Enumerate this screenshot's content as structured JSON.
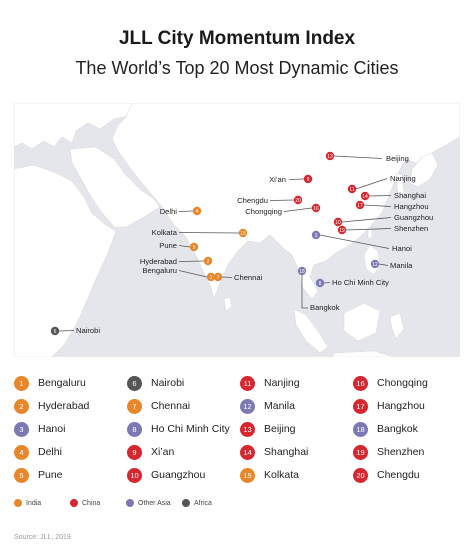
{
  "title": "JLL City Momentum Index",
  "subtitle": "The World’s Top 20 Most Dynamic Cities",
  "source": "Source: JLL, 2019",
  "colors": {
    "India": "#e8862a",
    "China": "#d6262f",
    "Other Asia": "#7b78b2",
    "Africa": "#555555"
  },
  "categories": [
    {
      "label": "India",
      "key": "India"
    },
    {
      "label": "China",
      "key": "China"
    },
    {
      "label": "Other Asia",
      "key": "Other Asia"
    },
    {
      "label": "Africa",
      "key": "Africa"
    }
  ],
  "cities": [
    {
      "rank": 1,
      "name": "Bengaluru",
      "region": "India"
    },
    {
      "rank": 2,
      "name": "Hyderabad",
      "region": "India"
    },
    {
      "rank": 3,
      "name": "Hanoi",
      "region": "Other Asia"
    },
    {
      "rank": 4,
      "name": "Delhi",
      "region": "India"
    },
    {
      "rank": 5,
      "name": "Pune",
      "region": "India"
    },
    {
      "rank": 6,
      "name": "Nairobi",
      "region": "Africa"
    },
    {
      "rank": 7,
      "name": "Chennai",
      "region": "India"
    },
    {
      "rank": 8,
      "name": "Ho Chi Minh City",
      "region": "Other Asia"
    },
    {
      "rank": 9,
      "name": "Xi’an",
      "region": "China"
    },
    {
      "rank": 10,
      "name": "Guangzhou",
      "region": "China"
    },
    {
      "rank": 11,
      "name": "Nanjing",
      "region": "China"
    },
    {
      "rank": 12,
      "name": "Manila",
      "region": "Other Asia"
    },
    {
      "rank": 13,
      "name": "Beijing",
      "region": "China"
    },
    {
      "rank": 14,
      "name": "Shanghai",
      "region": "China"
    },
    {
      "rank": 15,
      "name": "Kolkata",
      "region": "India"
    },
    {
      "rank": 16,
      "name": "Chongqing",
      "region": "China"
    },
    {
      "rank": 17,
      "name": "Hangzhou",
      "region": "China"
    },
    {
      "rank": 18,
      "name": "Bangkok",
      "region": "Other Asia"
    },
    {
      "rank": 19,
      "name": "Shenzhen",
      "region": "China"
    },
    {
      "rank": 20,
      "name": "Chengdu",
      "region": "China"
    }
  ]
}
